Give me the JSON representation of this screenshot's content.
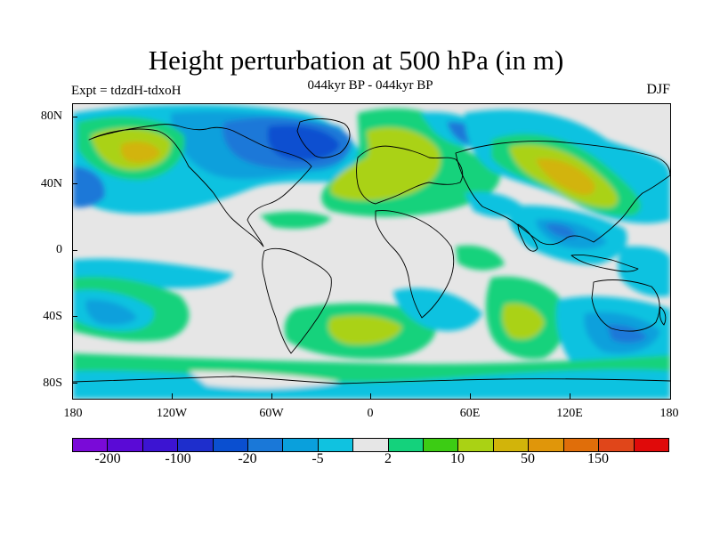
{
  "header": {
    "title": "Height perturbation at 500 hPa (in m)",
    "subtitle": "044kyr BP - 044kyr BP",
    "left_label": "Expt = tdzdH-tdxoH",
    "right_label": "DJF"
  },
  "axes": {
    "lat_labels": [
      "80N",
      "40N",
      "0",
      "40S",
      "80S"
    ],
    "lon_labels": [
      "180",
      "120W",
      "60W",
      "0",
      "60E",
      "120E",
      "180"
    ]
  },
  "colorbar": {
    "colors": [
      "#7a0ad8",
      "#5a0ad6",
      "#3c14d2",
      "#1e2ecc",
      "#0a4fd0",
      "#1a78d8",
      "#0aa0dc",
      "#10c2e0",
      "#e6e6e6",
      "#14d27c",
      "#3ccc14",
      "#aad214",
      "#d2b40a",
      "#e0960a",
      "#e06e0a",
      "#e0461a",
      "#e00a0a"
    ],
    "labels": [
      "-200",
      "-100",
      "-20",
      "-5",
      "2",
      "10",
      "50",
      "150"
    ]
  },
  "colors": {
    "map_background": "#e6e6e6",
    "coastline": "#000000"
  }
}
